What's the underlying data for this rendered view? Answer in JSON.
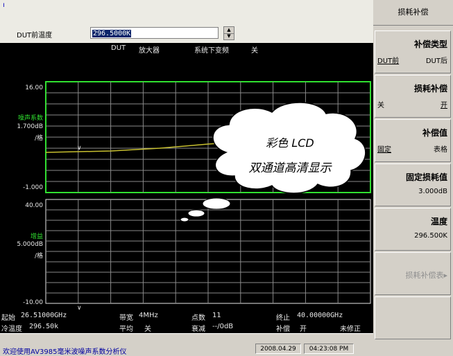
{
  "header": {
    "marker": "ı"
  },
  "param": {
    "label": "DUT前温度",
    "value": "296.5000K",
    "spin_up": "▲",
    "spin_down": "▼"
  },
  "info": {
    "dut": "DUT",
    "dut_type": "放大器",
    "down_conv": "系统下变频",
    "down_conv_state": "关"
  },
  "upper_chart": {
    "top": "16.00",
    "param": "噪声系数",
    "scale": "1.700dB",
    "per_div": "/格",
    "bottom": "-1.000"
  },
  "lower_chart": {
    "top": "40.00",
    "param": "增益",
    "scale": "5.000dB",
    "per_div": "/格",
    "bottom": "-10.00"
  },
  "bottom_info": {
    "start_label": "起始",
    "start_value": "26.51000GHz",
    "bw_label": "带宽",
    "bw_value": "4MHz",
    "points_label": "点数",
    "points_value": "11",
    "stop_label": "终止",
    "stop_value": "40.00000GHz",
    "cold_label": "冷温度",
    "cold_value": "296.50k",
    "avg_label": "平均",
    "avg_value": "关",
    "atten_label": "衰减",
    "atten_value": "--/0dB",
    "comp_label": "补偿",
    "comp_value": "开",
    "corr_value": "未修正"
  },
  "bubble": {
    "line1": "彩色 LCD",
    "line2": "双通道高清显示"
  },
  "status": {
    "message": "欢迎使用AV3985毫米波噪声系数分析仪",
    "date": "2008.04.29",
    "time": "04:23:08 PM"
  },
  "softkeys": {
    "title": "损耗补偿",
    "comp_type": {
      "label": "补偿类型",
      "opt1": "DUT前",
      "opt2": "DUT后"
    },
    "loss_comp": {
      "label": "损耗补偿",
      "opt1": "关",
      "opt2": "开"
    },
    "comp_value": {
      "label": "补偿值",
      "opt1": "固定",
      "opt2": "表格"
    },
    "fixed_loss": {
      "label": "固定损耗值",
      "value": "3.000dB"
    },
    "temperature": {
      "label": "温度",
      "value": "296.500K"
    },
    "loss_table": {
      "label": "损耗补偿表▸"
    }
  },
  "colors": {
    "trace": "#c8c030",
    "grid_border": "#30e030",
    "grid": "#8a8a8a"
  }
}
